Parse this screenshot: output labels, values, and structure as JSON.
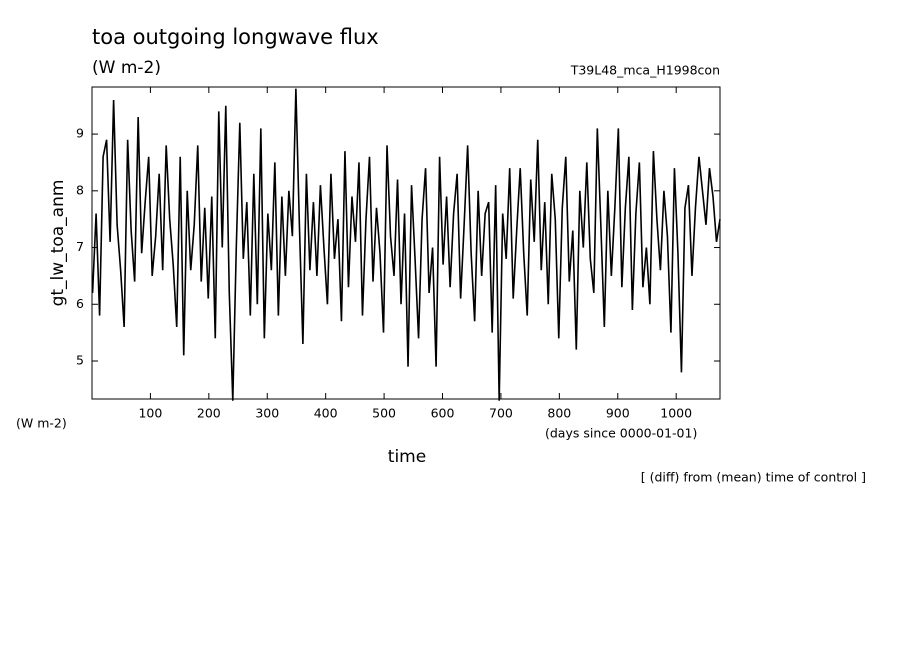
{
  "chart_data": {
    "type": "line",
    "title": "toa outgoing longwave flux",
    "subtitle": "(W m-2)",
    "run_label": "T39L48_mca_H1998con",
    "y_label": "gt_lw_toa_anm",
    "y_units": "(W m-2)",
    "x_label": "time",
    "x_units": "(days since 0000-01-01)",
    "footnote": "[ (diff) from (mean) time of control ]",
    "color": "#000000",
    "xlim": [
      0,
      1075
    ],
    "xticks": [
      100,
      200,
      300,
      400,
      500,
      600,
      700,
      800,
      900,
      1000
    ],
    "ylim": [
      4.33,
      9.83
    ],
    "yticks": [
      5,
      6,
      7,
      8,
      9
    ],
    "x": [
      1,
      7,
      13,
      19,
      25,
      31,
      37,
      43,
      49,
      55,
      61,
      67,
      73,
      79,
      85,
      91,
      97,
      103,
      109,
      115,
      121,
      127,
      133,
      139,
      145,
      151,
      157,
      163,
      169,
      175,
      181,
      187,
      193,
      199,
      205,
      211,
      217,
      223,
      229,
      235,
      241,
      247,
      253,
      259,
      265,
      271,
      277,
      283,
      289,
      295,
      301,
      307,
      313,
      319,
      325,
      331,
      337,
      343,
      349,
      355,
      361,
      367,
      373,
      379,
      385,
      391,
      397,
      403,
      409,
      415,
      421,
      427,
      433,
      439,
      445,
      451,
      457,
      463,
      469,
      475,
      481,
      487,
      493,
      499,
      505,
      511,
      517,
      523,
      529,
      535,
      541,
      547,
      553,
      559,
      565,
      571,
      577,
      583,
      589,
      595,
      601,
      607,
      613,
      619,
      625,
      631,
      637,
      643,
      649,
      655,
      661,
      667,
      673,
      679,
      685,
      691,
      697,
      703,
      709,
      715,
      721,
      727,
      733,
      739,
      745,
      751,
      757,
      763,
      769,
      775,
      781,
      787,
      793,
      799,
      805,
      811,
      817,
      823,
      829,
      835,
      841,
      847,
      853,
      859,
      865,
      871,
      877,
      883,
      889,
      895,
      901,
      907,
      913,
      919,
      925,
      931,
      937,
      943,
      949,
      955,
      961,
      967,
      973,
      979,
      985,
      991,
      997,
      1003,
      1009,
      1015,
      1021,
      1027,
      1033,
      1039,
      1045,
      1051,
      1057,
      1063,
      1069,
      1075
    ],
    "values": [
      6.2,
      7.6,
      5.8,
      8.6,
      8.9,
      7.1,
      9.6,
      7.4,
      6.6,
      5.6,
      8.9,
      7.3,
      6.4,
      9.3,
      6.9,
      7.8,
      8.6,
      6.5,
      7.2,
      8.3,
      6.6,
      8.8,
      7.5,
      6.7,
      5.6,
      8.6,
      5.1,
      8.0,
      6.6,
      7.4,
      8.8,
      6.4,
      7.7,
      6.1,
      7.9,
      5.4,
      9.4,
      7.0,
      9.5,
      6.2,
      4.3,
      7.0,
      9.2,
      6.8,
      7.8,
      5.8,
      8.3,
      6.0,
      9.1,
      5.4,
      7.6,
      6.6,
      8.5,
      5.8,
      7.9,
      6.5,
      8.0,
      7.2,
      9.8,
      7.4,
      5.3,
      8.3,
      6.6,
      7.8,
      6.5,
      8.1,
      7.0,
      6.0,
      8.3,
      6.8,
      7.5,
      5.7,
      8.7,
      6.3,
      7.9,
      7.1,
      8.5,
      5.8,
      7.5,
      8.6,
      6.4,
      7.7,
      6.9,
      5.5,
      8.8,
      7.2,
      6.5,
      8.2,
      6.0,
      7.6,
      4.9,
      8.1,
      6.8,
      5.4,
      7.5,
      8.4,
      6.2,
      7.0,
      4.9,
      8.6,
      6.7,
      7.9,
      6.3,
      7.6,
      8.3,
      6.1,
      7.4,
      8.8,
      6.9,
      5.7,
      8.0,
      6.5,
      7.6,
      7.8,
      5.5,
      8.1,
      4.3,
      7.6,
      6.8,
      8.4,
      6.1,
      7.3,
      8.4,
      6.9,
      5.8,
      8.2,
      7.1,
      8.9,
      6.6,
      7.8,
      6.0,
      8.3,
      7.5,
      5.4,
      7.7,
      8.6,
      6.4,
      7.3,
      5.2,
      8.0,
      7.0,
      8.5,
      6.8,
      6.2,
      9.1,
      7.4,
      5.6,
      8.0,
      6.5,
      7.7,
      9.1,
      6.3,
      7.7,
      8.6,
      5.9,
      7.6,
      8.5,
      6.3,
      7.0,
      6.0,
      8.7,
      7.5,
      6.6,
      8.0,
      7.2,
      5.5,
      8.4,
      6.9,
      4.8,
      7.7,
      8.1,
      6.5,
      7.7,
      8.6,
      8.0,
      7.4,
      8.4,
      7.9,
      7.1,
      7.5
    ]
  }
}
